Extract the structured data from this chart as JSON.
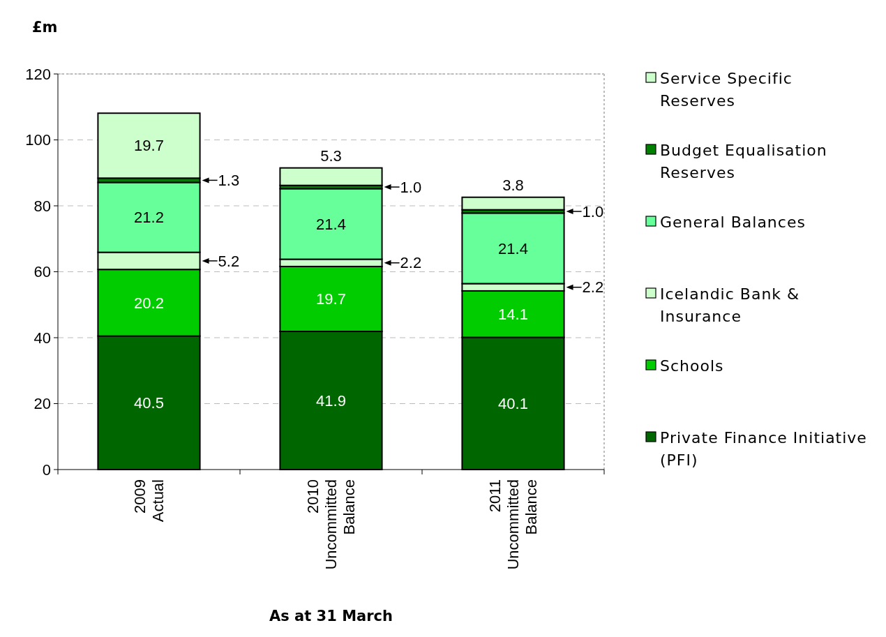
{
  "chart_data": {
    "type": "bar",
    "stacked": true,
    "ylabel": "£m",
    "xlabel": "As at 31 March",
    "categories": [
      "2009 Actual",
      "2010 Uncommitted Balance",
      "2011 Uncommitted Balance"
    ],
    "series": [
      {
        "name": "Private Finance Initiative (PFI)",
        "color": "#006600",
        "values": [
          40.5,
          41.9,
          40.1
        ],
        "value_labels": [
          "40.5",
          "41.9",
          "40.1"
        ]
      },
      {
        "name": "Schools",
        "color": "#00cc00",
        "values": [
          20.2,
          19.7,
          14.1
        ],
        "value_labels": [
          "20.2",
          "19.7",
          "14.1"
        ]
      },
      {
        "name": "Icelandic Bank & Insurance",
        "color": "#ccffcc",
        "values": [
          5.2,
          2.2,
          2.2
        ],
        "value_labels": [
          "5.2",
          "2.2",
          "2.2"
        ]
      },
      {
        "name": "General Balances",
        "color": "#66ff99",
        "values": [
          21.2,
          21.4,
          21.4
        ],
        "value_labels": [
          "21.2",
          "21.4",
          "21.4"
        ]
      },
      {
        "name": "Budget Equalisation Reserves",
        "color": "#008000",
        "values": [
          1.3,
          1.0,
          1.0
        ],
        "value_labels": [
          "1.3",
          "1.0",
          "1.0"
        ]
      },
      {
        "name": "Service Specific Reserves",
        "color": "#ccffcc",
        "values": [
          19.7,
          5.3,
          3.8
        ],
        "value_labels": [
          "19.7",
          "5.3",
          "3.8"
        ]
      }
    ],
    "ylim": [
      0,
      120
    ],
    "yticks": [
      0,
      20,
      40,
      60,
      80,
      100,
      120
    ],
    "grid": "y",
    "legend": "right"
  }
}
